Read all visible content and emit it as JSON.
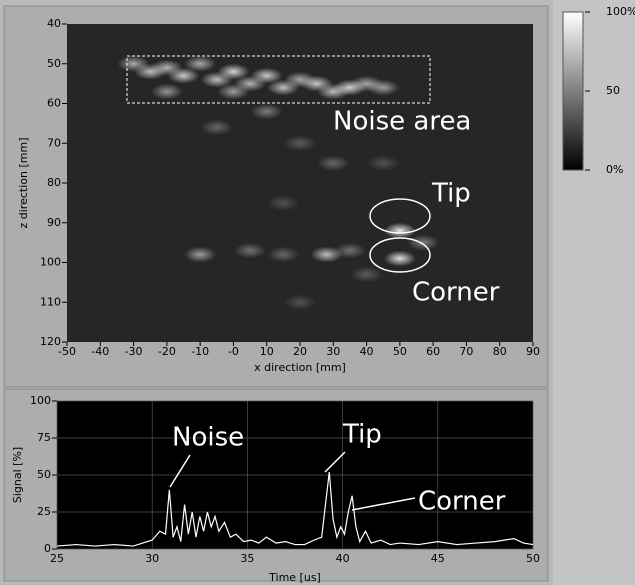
{
  "chart_data": [
    {
      "type": "heatmap",
      "x_label": "x direction [mm]",
      "y_label": "z direction [mm]",
      "xlim": [
        -50,
        90
      ],
      "ylim": [
        40,
        120
      ],
      "y_reversed": true,
      "xticks": [
        -50,
        -40,
        -30,
        -20,
        -10,
        {
          "value": 0,
          "label": "-0"
        },
        10,
        20,
        30,
        40,
        50,
        60,
        70,
        80,
        90
      ],
      "yticks": [
        40,
        50,
        60,
        70,
        80,
        90,
        100,
        110,
        120
      ],
      "x": [
        -30,
        -25,
        -20,
        -15,
        -10,
        -5,
        0,
        5,
        10,
        15,
        20,
        25,
        30,
        35,
        40,
        45,
        -20,
        0,
        10,
        -5,
        20,
        30,
        45,
        15,
        -10,
        5,
        15,
        28,
        35,
        50,
        50,
        57,
        40,
        20
      ],
      "y": [
        50,
        52,
        51,
        53,
        50,
        54,
        52,
        55,
        53,
        56,
        54,
        55,
        57,
        56,
        55,
        56,
        57,
        57,
        62,
        66,
        70,
        75,
        75,
        85,
        98,
        97,
        98,
        98,
        97,
        92,
        99,
        95,
        103,
        110
      ],
      "values": [
        60,
        70,
        65,
        75,
        60,
        70,
        80,
        65,
        75,
        70,
        60,
        75,
        70,
        80,
        60,
        55,
        50,
        55,
        40,
        30,
        25,
        30,
        20,
        20,
        55,
        35,
        30,
        70,
        35,
        90,
        85,
        40,
        25,
        20
      ],
      "annotations": [
        "Noise area",
        "Tip",
        "Corner"
      ],
      "colorbar": {
        "lim": [
          0,
          100
        ],
        "ticks": [
          {
            "value": 100,
            "label": "100%"
          },
          {
            "value": 50,
            "label": "50"
          },
          {
            "value": 0,
            "label": "0%"
          }
        ]
      }
    },
    {
      "type": "line",
      "x_label": "Time [us]",
      "y_label": "Signal [%]",
      "xlim": [
        25,
        50
      ],
      "ylim": [
        0,
        100
      ],
      "xticks": [
        25,
        30,
        35,
        40,
        45,
        50
      ],
      "yticks": [
        0,
        25,
        50,
        75,
        100
      ],
      "grid": true,
      "color": "#ffffff",
      "x": [
        25,
        26,
        27,
        28,
        29,
        29.5,
        30,
        30.4,
        30.7,
        30.9,
        31.1,
        31.3,
        31.5,
        31.7,
        31.9,
        32.1,
        32.3,
        32.5,
        32.7,
        32.9,
        33.1,
        33.3,
        33.5,
        33.8,
        34.1,
        34.4,
        34.8,
        35.2,
        35.6,
        36,
        36.5,
        37,
        37.5,
        38,
        38.5,
        38.9,
        39.1,
        39.3,
        39.5,
        39.7,
        39.9,
        40.1,
        40.3,
        40.5,
        40.7,
        40.9,
        41.2,
        41.5,
        42,
        42.5,
        43,
        44,
        45,
        46,
        47,
        48,
        49,
        49.5,
        50
      ],
      "values": [
        2,
        3,
        2,
        3,
        2,
        4,
        6,
        12,
        10,
        40,
        8,
        15,
        5,
        30,
        10,
        25,
        8,
        22,
        12,
        25,
        15,
        22,
        12,
        18,
        8,
        10,
        5,
        6,
        4,
        8,
        4,
        5,
        3,
        3,
        6,
        8,
        30,
        52,
        20,
        8,
        15,
        10,
        25,
        36,
        15,
        5,
        12,
        4,
        6,
        3,
        4,
        3,
        5,
        3,
        4,
        5,
        7,
        4,
        3
      ],
      "annotations": [
        "Noise",
        "Tip",
        "Corner"
      ]
    }
  ]
}
